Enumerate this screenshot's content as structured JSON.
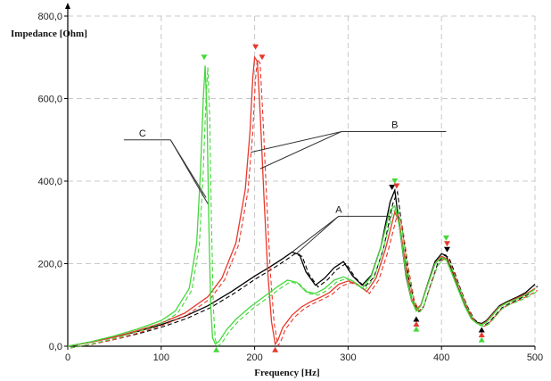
{
  "chart_data": {
    "type": "line",
    "xlabel": "Frequency [Hz]",
    "ylabel": "Impedance [Ohm]",
    "xlim": [
      0,
      500
    ],
    "ylim": [
      0,
      800
    ],
    "grid": true,
    "legend": "none",
    "x_ticks": [
      0,
      100,
      200,
      300,
      400,
      500
    ],
    "x_tick_labels": [
      "0",
      "100",
      "200",
      "300",
      "400",
      "500"
    ],
    "y_ticks": [
      0,
      200,
      400,
      600,
      800
    ],
    "y_tick_labels": [
      "0,0",
      "200,0",
      "400,0",
      "600,0",
      "800,0"
    ],
    "series": [
      {
        "label": "A",
        "color": "#000000",
        "style": "solid+dashed",
        "x": [
          0,
          25,
          50,
          75,
          100,
          125,
          150,
          175,
          200,
          215,
          230,
          240,
          248,
          255,
          265,
          275,
          285,
          295,
          305,
          315,
          325,
          335,
          345,
          350,
          355,
          362,
          368,
          373,
          378,
          385,
          393,
          400,
          405,
          410,
          418,
          425,
          432,
          438,
          443,
          448,
          455,
          462,
          470,
          480,
          490,
          500
        ],
        "y": [
          0,
          10,
          22,
          36,
          52,
          72,
          98,
          132,
          170,
          190,
          212,
          228,
          222,
          180,
          148,
          165,
          190,
          205,
          170,
          148,
          172,
          240,
          350,
          378,
          290,
          170,
          110,
          88,
          100,
          150,
          205,
          224,
          220,
          190,
          140,
          100,
          70,
          58,
          55,
          62,
          80,
          98,
          108,
          118,
          130,
          150
        ]
      },
      {
        "label": "B",
        "color": "#e8382c",
        "style": "solid+dashed",
        "x": [
          0,
          25,
          50,
          75,
          100,
          125,
          150,
          165,
          180,
          190,
          195,
          198,
          200,
          203,
          206,
          210,
          214,
          218,
          222,
          225,
          230,
          240,
          250,
          260,
          270,
          280,
          290,
          300,
          310,
          320,
          330,
          340,
          350,
          355,
          362,
          368,
          373,
          378,
          385,
          393,
          400,
          405,
          410,
          418,
          425,
          432,
          438,
          443,
          448,
          455,
          462,
          470,
          480,
          490,
          500
        ],
        "y": [
          0,
          10,
          22,
          38,
          56,
          80,
          120,
          165,
          250,
          380,
          520,
          650,
          700,
          690,
          560,
          360,
          180,
          60,
          5,
          15,
          45,
          75,
          95,
          108,
          118,
          130,
          150,
          158,
          150,
          132,
          165,
          235,
          325,
          300,
          190,
          115,
          90,
          100,
          148,
          200,
          218,
          212,
          185,
          138,
          98,
          68,
          56,
          53,
          60,
          78,
          96,
          106,
          116,
          126,
          140
        ]
      },
      {
        "label": "C",
        "color": "#44d83a",
        "style": "solid+dashed",
        "x": [
          0,
          25,
          50,
          75,
          100,
          115,
          130,
          138,
          142,
          145,
          147,
          149,
          151,
          153,
          155,
          158,
          162,
          170,
          180,
          195,
          210,
          225,
          235,
          245,
          255,
          265,
          275,
          285,
          295,
          305,
          315,
          325,
          335,
          345,
          350,
          355,
          362,
          368,
          373,
          378,
          385,
          393,
          400,
          405,
          410,
          418,
          425,
          432,
          438,
          443,
          448,
          455,
          462,
          470,
          480,
          490,
          500
        ],
        "y": [
          0,
          11,
          25,
          42,
          62,
          85,
          140,
          250,
          420,
          600,
          680,
          560,
          300,
          100,
          20,
          5,
          12,
          40,
          65,
          95,
          120,
          145,
          160,
          155,
          132,
          128,
          140,
          160,
          168,
          158,
          140,
          170,
          240,
          330,
          340,
          290,
          175,
          110,
          85,
          98,
          148,
          200,
          215,
          210,
          182,
          136,
          96,
          66,
          55,
          52,
          58,
          76,
          95,
          105,
          114,
          124,
          138
        ]
      }
    ],
    "peak_markers": [
      {
        "x": 146,
        "y": 700,
        "color": "#44d83a",
        "dir": "down"
      },
      {
        "x": 201,
        "y": 725,
        "color": "#e8382c",
        "dir": "down"
      },
      {
        "x": 208,
        "y": 700,
        "color": "#e8382c",
        "dir": "down"
      },
      {
        "x": 347,
        "y": 385,
        "color": "#000000",
        "dir": "down"
      },
      {
        "x": 350,
        "y": 400,
        "color": "#44d83a",
        "dir": "down"
      },
      {
        "x": 352,
        "y": 388,
        "color": "#e8382c",
        "dir": "down"
      },
      {
        "x": 405,
        "y": 262,
        "color": "#44d83a",
        "dir": "down"
      },
      {
        "x": 406,
        "y": 248,
        "color": "#e8382c",
        "dir": "down"
      },
      {
        "x": 406,
        "y": 234,
        "color": "#000000",
        "dir": "down"
      },
      {
        "x": 159,
        "y": -8,
        "color": "#44d83a",
        "dir": "up"
      },
      {
        "x": 222,
        "y": -8,
        "color": "#e8382c",
        "dir": "up"
      },
      {
        "x": 373,
        "y": 66,
        "color": "#000000",
        "dir": "up"
      },
      {
        "x": 373,
        "y": 54,
        "color": "#e8382c",
        "dir": "up"
      },
      {
        "x": 373,
        "y": 42,
        "color": "#44d83a",
        "dir": "up"
      },
      {
        "x": 443,
        "y": 40,
        "color": "#000000",
        "dir": "up"
      },
      {
        "x": 443,
        "y": 28,
        "color": "#e8382c",
        "dir": "up"
      },
      {
        "x": 443,
        "y": 16,
        "color": "#44d83a",
        "dir": "up"
      }
    ],
    "annotations": [
      {
        "text": "A",
        "label_at": [
          290,
          315
        ],
        "points_to": [
          [
            240,
            228
          ],
          [
            245,
            225
          ]
        ],
        "leader_from": [
          290,
          315
        ]
      },
      {
        "text": "B",
        "label_at": [
          350,
          520
        ],
        "points_to": [
          [
            196,
            470
          ],
          [
            206,
            430
          ]
        ],
        "leader_from": [
          293,
          520
        ]
      },
      {
        "text": "C",
        "label_at": [
          80,
          500
        ],
        "points_to": [
          [
            148,
            360
          ],
          [
            150,
            345
          ]
        ],
        "leader_from": [
          110,
          500
        ]
      }
    ]
  }
}
